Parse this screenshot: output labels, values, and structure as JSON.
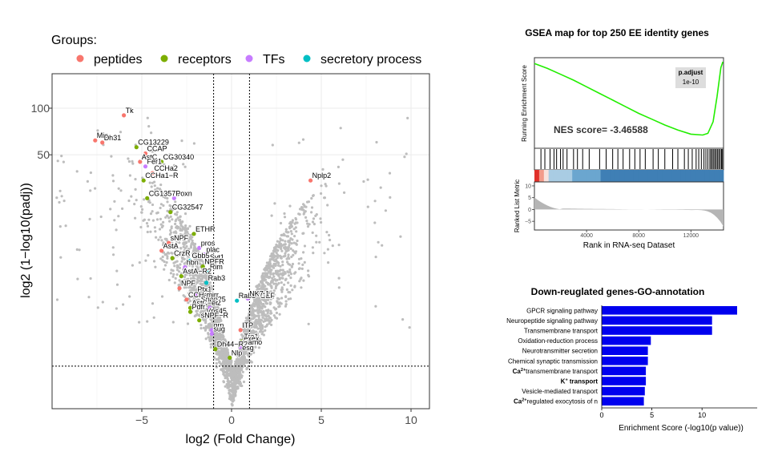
{
  "colors": {
    "peptides": "#F8766D",
    "receptors": "#7CAE00",
    "tfs": "#C77CFF",
    "secretory": "#00BFC4",
    "background_points": "#BDBDBD",
    "gsea_curve": "#22EE00",
    "go_bar": "#0000EE",
    "grid": "#EBEBEB"
  },
  "chart_data": [
    {
      "type": "scatter",
      "name": "volcano",
      "legend_title": "Groups:",
      "legend": [
        {
          "key": "peptides",
          "label": "peptides"
        },
        {
          "key": "receptors",
          "label": "receptors"
        },
        {
          "key": "tfs",
          "label": "TFs"
        },
        {
          "key": "secretory",
          "label": "secretory process"
        }
      ],
      "xlabel": "log2 (Fold Change)",
      "ylabel": "log2 (1−log10(padj))",
      "xlim": [
        -10,
        11
      ],
      "x_ticks": [
        {
          "value": -5,
          "label": "−5"
        },
        {
          "value": 0,
          "label": "0"
        },
        {
          "value": 5,
          "label": "5"
        },
        {
          "value": 10,
          "label": "10"
        }
      ],
      "y_ticks": [
        {
          "value": 100,
          "label": "100"
        },
        {
          "value": 50,
          "label": "50"
        }
      ],
      "vlines": [
        -1,
        1
      ],
      "hline": 1.3,
      "genes": [
        {
          "name": "Tk",
          "x": -6.0,
          "y": 90,
          "group": "peptides"
        },
        {
          "name": "Mip",
          "x": -7.6,
          "y": 62,
          "group": "peptides"
        },
        {
          "name": "Dh31",
          "x": -7.2,
          "y": 60,
          "group": "peptides"
        },
        {
          "name": "CG13229",
          "x": -5.3,
          "y": 56,
          "group": "receptors"
        },
        {
          "name": "CCAP",
          "x": -4.8,
          "y": 51,
          "group": "peptides"
        },
        {
          "name": "AstC",
          "x": -5.1,
          "y": 45,
          "group": "peptides"
        },
        {
          "name": "CG30340",
          "x": -3.9,
          "y": 45,
          "group": "receptors"
        },
        {
          "name": "Fer1",
          "x": -4.8,
          "y": 42,
          "group": "tfs"
        },
        {
          "name": "CCHa2",
          "x": -4.4,
          "y": 38,
          "group": "peptides"
        },
        {
          "name": "CCHa1−R",
          "x": -4.9,
          "y": 34,
          "group": "receptors"
        },
        {
          "name": "Nplp2",
          "x": 4.4,
          "y": 34,
          "group": "peptides"
        },
        {
          "name": "CG13575",
          "x": -4.7,
          "y": 26,
          "group": "receptors"
        },
        {
          "name": "Poxn",
          "x": -3.2,
          "y": 26,
          "group": "tfs"
        },
        {
          "name": "CG32547",
          "x": -3.4,
          "y": 21,
          "group": "receptors"
        },
        {
          "name": "ETHR",
          "x": -2.1,
          "y": 15,
          "group": "receptors"
        },
        {
          "name": "sNPF",
          "x": -3.5,
          "y": 13,
          "group": "peptides"
        },
        {
          "name": "pros",
          "x": -1.8,
          "y": 12,
          "group": "tfs"
        },
        {
          "name": "AstA",
          "x": -3.9,
          "y": 11.5,
          "group": "peptides"
        },
        {
          "name": "plac",
          "x": -1.5,
          "y": 10.8,
          "group": "tfs"
        },
        {
          "name": "CrzR",
          "x": -3.3,
          "y": 10.2,
          "group": "receptors"
        },
        {
          "name": "Gbb5",
          "x": -2.3,
          "y": 9.8,
          "group": "secretory"
        },
        {
          "name": "Syt1",
          "x": -1.3,
          "y": 9.6,
          "group": "secretory"
        },
        {
          "name": "hbn",
          "x": -2.6,
          "y": 8.8,
          "group": "tfs"
        },
        {
          "name": "NPFR",
          "x": -1.6,
          "y": 8.9,
          "group": "receptors"
        },
        {
          "name": "Rim",
          "x": -1.3,
          "y": 8.2,
          "group": "secretory"
        },
        {
          "name": "AstA−R2",
          "x": -2.8,
          "y": 7.6,
          "group": "receptors"
        },
        {
          "name": "Rab3",
          "x": -1.4,
          "y": 6.8,
          "group": "secretory"
        },
        {
          "name": "NPF",
          "x": -2.9,
          "y": 6.2,
          "group": "peptides"
        },
        {
          "name": "Ptx1",
          "x": -2.0,
          "y": 5.6,
          "group": "tfs"
        },
        {
          "name": "CCHa1",
          "x": -2.5,
          "y": 5.1,
          "group": "peptides"
        },
        {
          "name": "mirr",
          "x": -1.5,
          "y": 5.1,
          "group": "tfs"
        },
        {
          "name": "Rab3−GEF",
          "x": 0.3,
          "y": 5.0,
          "group": "secretory"
        },
        {
          "name": "NK7.1",
          "x": 0.9,
          "y": 5.2,
          "group": "tfs"
        },
        {
          "name": "Snap25",
          "x": -1.8,
          "y": 4.7,
          "group": "secretory"
        },
        {
          "name": "AstC−R2",
          "x": -2.3,
          "y": 4.4,
          "group": "receptors"
        },
        {
          "name": "er",
          "x": -1.2,
          "y": 4.4,
          "group": "tfs"
        },
        {
          "name": "Pdfr",
          "x": -2.3,
          "y": 4.1,
          "group": "receptors"
        },
        {
          "name": "Vps45",
          "x": -1.5,
          "y": 3.8,
          "group": "secretory"
        },
        {
          "name": "sNPF−R",
          "x": -1.8,
          "y": 3.5,
          "group": "receptors"
        },
        {
          "name": "grn",
          "x": -1.1,
          "y": 2.9,
          "group": "tfs"
        },
        {
          "name": "sug",
          "x": -1.1,
          "y": 2.7,
          "group": "tfs"
        },
        {
          "name": "ITP",
          "x": 0.5,
          "y": 2.9,
          "group": "peptides"
        },
        {
          "name": "Tre1",
          "x": 0.6,
          "y": 2.3,
          "group": "receptors"
        },
        {
          "name": "exex",
          "x": 0.6,
          "y": 2.2,
          "group": "tfs"
        },
        {
          "name": "mamo",
          "x": 0.5,
          "y": 2.05,
          "group": "tfs"
        },
        {
          "name": "Dh44−R2",
          "x": -0.9,
          "y": 1.95,
          "group": "receptors"
        },
        {
          "name": "esg",
          "x": 0.5,
          "y": 1.8,
          "group": "tfs"
        },
        {
          "name": "Nlp",
          "x": -0.1,
          "y": 1.6,
          "group": "receptors"
        }
      ]
    },
    {
      "type": "line",
      "name": "gsea",
      "title": "GSEA map for top 250 EE identity genes",
      "ylabel_top": "Running Enrichment Score",
      "ylabel_bottom": "Ranked List Metric",
      "xlabel": "Rank in RNA-seq Dataset",
      "x_ticks": [
        "4000",
        "8000",
        "12000"
      ],
      "x_tick_values": [
        4000,
        8000,
        12000
      ],
      "xlim": [
        0,
        14500
      ],
      "metric_ticks": [
        "10",
        "5",
        "0",
        "−5"
      ],
      "metric_tick_values": [
        10,
        5,
        0,
        -5
      ],
      "metric_lim": [
        -8,
        11
      ],
      "es_lim": [
        -1,
        0.05
      ],
      "padjust_header": "p.adjust",
      "padjust_value": "1e-10",
      "nes_text": "NES score= -3.46588",
      "running_es": [
        {
          "x": 0,
          "y": 0.0
        },
        {
          "x": 1000,
          "y": -0.06
        },
        {
          "x": 2000,
          "y": -0.13
        },
        {
          "x": 3000,
          "y": -0.2
        },
        {
          "x": 4000,
          "y": -0.28
        },
        {
          "x": 5000,
          "y": -0.36
        },
        {
          "x": 6000,
          "y": -0.44
        },
        {
          "x": 7000,
          "y": -0.52
        },
        {
          "x": 8000,
          "y": -0.6
        },
        {
          "x": 9000,
          "y": -0.67
        },
        {
          "x": 10000,
          "y": -0.74
        },
        {
          "x": 11000,
          "y": -0.8
        },
        {
          "x": 12000,
          "y": -0.85
        },
        {
          "x": 12900,
          "y": -0.86
        },
        {
          "x": 13300,
          "y": -0.84
        },
        {
          "x": 13700,
          "y": -0.7
        },
        {
          "x": 14000,
          "y": -0.4
        },
        {
          "x": 14300,
          "y": -0.05
        },
        {
          "x": 14450,
          "y": 0.02
        }
      ],
      "hit_ranks": [
        500,
        800,
        1200,
        1500,
        1700,
        2000,
        2200,
        2500,
        3000,
        3300,
        3700,
        4200,
        5000,
        5500,
        6000,
        6400,
        6800,
        7300,
        7700,
        8100,
        8500,
        9100,
        9500,
        10000,
        10600,
        11000,
        11500,
        11800,
        12100,
        12400,
        12600,
        12800,
        13000,
        13150,
        13300,
        13450,
        13550,
        13650,
        13750,
        13850,
        13950,
        14050,
        14150,
        14250,
        14350,
        14420
      ]
    },
    {
      "type": "bar",
      "name": "go",
      "orientation": "horizontal",
      "title": "Down-reuglated genes-GO-annotation",
      "xlabel": "Enrichment Score (-log10(p value))",
      "xlim": [
        0,
        15.5
      ],
      "x_ticks": [
        {
          "value": 0,
          "label": "0"
        },
        {
          "value": 5,
          "label": "5"
        },
        {
          "value": 10,
          "label": "10"
        }
      ],
      "categories": [
        {
          "pre": "",
          "sup": "",
          "post": "GPCR signaling pathway"
        },
        {
          "pre": "",
          "sup": "",
          "post": "Neuropeptide signaling pathway"
        },
        {
          "pre": "",
          "sup": "",
          "post": "Transmembrane transport"
        },
        {
          "pre": "",
          "sup": "",
          "post": "Oxidation-reduction process"
        },
        {
          "pre": "",
          "sup": "",
          "post": "Neurotransmitter secretion"
        },
        {
          "pre": "",
          "sup": "",
          "post": "Chemical synaptic transmission"
        },
        {
          "pre": "Ca",
          "sup": "2+",
          "post": "transmembrane transport"
        },
        {
          "pre": "K",
          "sup": "+",
          "post": " transport"
        },
        {
          "pre": "",
          "sup": "",
          "post": "Vesicle-mediated transport"
        },
        {
          "pre": "Ca",
          "sup": "2+",
          "post": "regulated exocytosis of n"
        }
      ],
      "values": [
        13.5,
        11.0,
        11.0,
        4.9,
        4.6,
        4.6,
        4.4,
        4.4,
        4.3,
        4.2
      ]
    }
  ]
}
